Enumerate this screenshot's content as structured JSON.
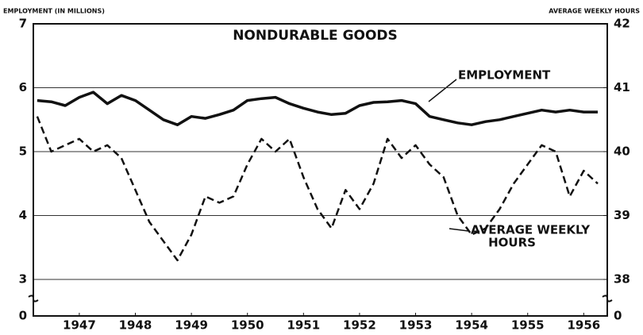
{
  "chart_data": {
    "type": "line",
    "title": "NONDURABLE GOODS",
    "ylabel": "EMPLOYMENT (IN MILLIONS)",
    "y2label": "AVERAGE WEEKLY HOURS",
    "annotations": [
      "EMPLOYMENT",
      "AVERAGE WEEKLY",
      "HOURS"
    ],
    "x": [
      1946.75,
      1947.0,
      1947.25,
      1947.5,
      1947.75,
      1948.0,
      1948.25,
      1948.5,
      1948.75,
      1949.0,
      1949.25,
      1949.5,
      1949.75,
      1950.0,
      1950.25,
      1950.5,
      1950.75,
      1951.0,
      1951.25,
      1951.5,
      1951.75,
      1952.0,
      1952.25,
      1952.5,
      1952.75,
      1953.0,
      1953.25,
      1953.5,
      1953.75,
      1954.0,
      1954.25,
      1954.5,
      1954.75,
      1955.0,
      1955.25,
      1955.5,
      1955.75,
      1956.0,
      1956.25,
      1956.5,
      1956.75
    ],
    "series": [
      {
        "name": "EMPLOYMENT",
        "color": "#111111",
        "line_style": "solid",
        "values": [
          5.8,
          5.78,
          5.72,
          5.85,
          5.93,
          5.75,
          5.88,
          5.8,
          5.65,
          5.5,
          5.42,
          5.55,
          5.52,
          5.58,
          5.65,
          5.8,
          5.83,
          5.85,
          5.75,
          5.68,
          5.62,
          5.58,
          5.6,
          5.72,
          5.77,
          5.78,
          5.8,
          5.75,
          5.55,
          5.5,
          5.45,
          5.42,
          5.47,
          5.5,
          5.55,
          5.6,
          5.65,
          5.62,
          5.65,
          5.62,
          5.62
        ]
      },
      {
        "name": "AVERAGE WEEKLY HOURS",
        "color": "#111111",
        "line_style": "dashed",
        "axis": "y2",
        "values": [
          40.55,
          40.0,
          40.1,
          40.2,
          40.0,
          40.1,
          39.9,
          39.4,
          38.9,
          38.6,
          38.3,
          38.7,
          39.3,
          39.2,
          39.3,
          39.8,
          40.2,
          40.0,
          40.2,
          39.6,
          39.1,
          38.8,
          39.4,
          39.1,
          39.5,
          40.2,
          39.9,
          40.1,
          39.8,
          39.6,
          39.0,
          38.7,
          38.8,
          39.1,
          39.5,
          39.8,
          40.1,
          40.0,
          39.3,
          39.7,
          39.5
        ]
      }
    ],
    "xlim": [
      1946.68,
      1956.92
    ],
    "xticks": [
      {
        "value": 1947.5,
        "label": "1947"
      },
      {
        "value": 1948.5,
        "label": "1948"
      },
      {
        "value": 1949.5,
        "label": "1949"
      },
      {
        "value": 1950.5,
        "label": "1950"
      },
      {
        "value": 1951.5,
        "label": "1951"
      },
      {
        "value": 1952.5,
        "label": "1952"
      },
      {
        "value": 1953.5,
        "label": "1953"
      },
      {
        "value": 1954.5,
        "label": "1954"
      },
      {
        "value": 1955.5,
        "label": "1955"
      },
      {
        "value": 1956.5,
        "label": "1956"
      }
    ],
    "ylim": [
      0,
      7
    ],
    "ybreak": 3,
    "yticks": [
      0,
      3,
      4,
      5,
      6,
      7
    ],
    "y2lim": [
      0,
      42
    ],
    "y2break": 38,
    "y2ticks": [
      0,
      38,
      39,
      40,
      41,
      42
    ],
    "grid": true
  }
}
